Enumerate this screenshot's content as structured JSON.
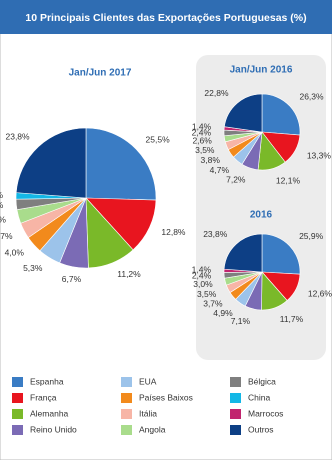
{
  "title": "10 Principais Clientes das Exportações Portuguesas (%)",
  "legend": {
    "categories": [
      "Espanha",
      "França",
      "Alemanha",
      "Reino Unido",
      "EUA",
      "Países Baixos",
      "Itália",
      "Angola",
      "Bélgica",
      "China",
      "Marrocos",
      "Outros"
    ],
    "colors": [
      "#3a7cc4",
      "#e8151f",
      "#7ab929",
      "#7b6bb5",
      "#9cc3ea",
      "#f28a1c",
      "#f7b5a6",
      "#a9dc8c",
      "#7f7f7f",
      "#13b7e6",
      "#c1246e",
      "#0d3f85"
    ]
  },
  "chart_data": [
    {
      "type": "pie",
      "title": "Jan/Jun 2017",
      "values": [
        25.5,
        12.8,
        11.2,
        6.7,
        5.3,
        4.0,
        3.7,
        3.2,
        2.4,
        1.5,
        null,
        23.8
      ],
      "value_labels": [
        "25,5%",
        "12,8%",
        "11,2%",
        "6,7%",
        "5,3%",
        "4,0%",
        "3,7%",
        "3,2%",
        "2,4%",
        "1,5%",
        null,
        "23,8%"
      ]
    },
    {
      "type": "pie",
      "title": "Jan/Jun 2016",
      "values": [
        26.3,
        13.3,
        12.1,
        7.2,
        4.7,
        3.8,
        3.5,
        2.6,
        2.4,
        null,
        1.4,
        22.8
      ],
      "value_labels": [
        "26,3%",
        "13,3%",
        "12,1%",
        "7,2%",
        "4,7%",
        "3,8%",
        "3,5%",
        "2,6%",
        "2,4%",
        null,
        "1,4%",
        "22,8%"
      ]
    },
    {
      "type": "pie",
      "title": "2016",
      "values": [
        25.9,
        12.6,
        11.7,
        7.1,
        4.9,
        3.7,
        3.5,
        3.0,
        2.4,
        null,
        1.4,
        23.8
      ],
      "value_labels": [
        "25,9%",
        "12,6%",
        "11,7%",
        "7,1%",
        "4,9%",
        "3,7%",
        "3,5%",
        "3,0%",
        "2,4%",
        null,
        "1,4%",
        "23,8%"
      ]
    }
  ]
}
